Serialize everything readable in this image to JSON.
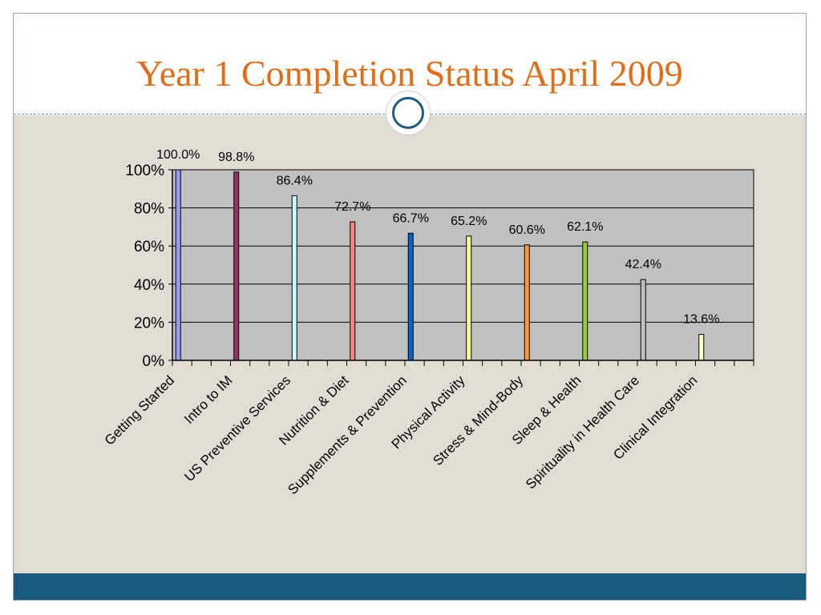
{
  "slide": {
    "title": "Year 1 Completion Status April 2009"
  },
  "colors": {
    "title": "#e36c17",
    "content_background": "#e1ddd2",
    "footer_bar": "#1b5a7f",
    "plot_area": "#c0c0c0"
  },
  "chart_data": {
    "type": "bar",
    "title": "",
    "xlabel": "",
    "ylabel": "",
    "ylim": [
      0,
      100
    ],
    "y_ticks": [
      "0%",
      "20%",
      "40%",
      "60%",
      "80%",
      "100%"
    ],
    "grid": true,
    "legend": "none",
    "categories": [
      "Getting Started",
      "Intro to IM",
      "US Preventive Services",
      "Nutrition & Diet",
      "Supplements & Prevention",
      "Physical Activity",
      "Stress & Mind-Body",
      "Sleep & Health",
      "Spirituality in Health Care",
      "Clinical Integration"
    ],
    "values": [
      100.0,
      98.8,
      86.4,
      72.7,
      66.7,
      65.2,
      60.6,
      62.1,
      42.4,
      13.6
    ],
    "data_labels": [
      "100.0%",
      "98.8%",
      "86.4%",
      "72.7%",
      "66.7%",
      "65.2%",
      "60.6%",
      "62.1%",
      "42.4%",
      "13.6%"
    ],
    "bar_colors": [
      "#9999ff",
      "#993366",
      "#ccffff",
      "#ff8080",
      "#0066cc",
      "#ffff99",
      "#ff9933",
      "#99cc33",
      "#c0c0c0",
      "#ffffcc"
    ]
  }
}
